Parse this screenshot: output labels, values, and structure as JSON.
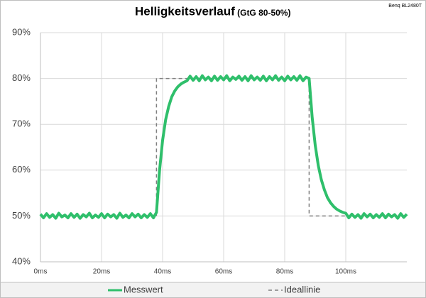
{
  "chart_data": {
    "type": "line",
    "title": "Helligkeitsverlauf",
    "subtitle": "(GtG 80-50%)",
    "annotation": "Benq BL2480T",
    "xlim": [
      0,
      120
    ],
    "xticks": [
      {
        "value": 0,
        "label": "0ms"
      },
      {
        "value": 20,
        "label": "20ms"
      },
      {
        "value": 40,
        "label": "40ms"
      },
      {
        "value": 60,
        "label": "60ms"
      },
      {
        "value": 80,
        "label": "80ms"
      },
      {
        "value": 100,
        "label": "100ms"
      }
    ],
    "ylim": [
      40,
      90
    ],
    "yticks": [
      {
        "value": 40,
        "label": "40%"
      },
      {
        "value": 50,
        "label": "50%"
      },
      {
        "value": 60,
        "label": "60%"
      },
      {
        "value": 70,
        "label": "70%"
      },
      {
        "value": 80,
        "label": "80%"
      },
      {
        "value": 90,
        "label": "90%"
      }
    ],
    "grid": true,
    "legend": "bottom",
    "series": [
      {
        "name": "Messwert",
        "color": "#2fbf6b",
        "dashed": false,
        "x": [
          0,
          1,
          2,
          3,
          4,
          5,
          6,
          7,
          8,
          9,
          10,
          11,
          12,
          13,
          14,
          15,
          16,
          17,
          18,
          19,
          20,
          21,
          22,
          23,
          24,
          25,
          26,
          27,
          28,
          29,
          30,
          31,
          32,
          33,
          34,
          35,
          36,
          37,
          38,
          39,
          40,
          41,
          42,
          43,
          44,
          45,
          46,
          47,
          48,
          49,
          50,
          51,
          52,
          53,
          54,
          55,
          56,
          57,
          58,
          59,
          60,
          61,
          62,
          63,
          64,
          65,
          66,
          67,
          68,
          69,
          70,
          71,
          72,
          73,
          74,
          75,
          76,
          77,
          78,
          79,
          80,
          81,
          82,
          83,
          84,
          85,
          86,
          87,
          88,
          89,
          90,
          91,
          92,
          93,
          94,
          95,
          96,
          97,
          98,
          99,
          100,
          101,
          102,
          103,
          104,
          105,
          106,
          107,
          108,
          109,
          110,
          111,
          112,
          113,
          114,
          115,
          116,
          117,
          118,
          119,
          120
        ],
        "values": [
          50.4,
          49.6,
          50.5,
          49.7,
          50.3,
          49.5,
          50.6,
          49.8,
          50.2,
          49.6,
          50.5,
          49.7,
          50.4,
          49.5,
          50.3,
          49.8,
          50.6,
          49.6,
          50.2,
          49.7,
          50.5,
          49.6,
          50.4,
          49.8,
          50.3,
          49.5,
          50.6,
          49.7,
          50.2,
          49.6,
          50.5,
          49.8,
          50.4,
          49.6,
          50.3,
          49.7,
          50.5,
          49.6,
          50.8,
          59.9,
          66.5,
          71.0,
          73.9,
          76.0,
          77.3,
          78.2,
          78.8,
          79.2,
          79.5,
          80.5,
          79.6,
          80.4,
          79.5,
          80.6,
          79.7,
          80.3,
          79.5,
          80.5,
          79.6,
          80.4,
          79.7,
          80.6,
          79.5,
          80.3,
          79.8,
          80.5,
          79.6,
          80.4,
          79.5,
          80.6,
          79.7,
          80.3,
          79.6,
          80.5,
          79.5,
          80.4,
          79.7,
          80.6,
          79.6,
          80.3,
          79.5,
          80.5,
          79.7,
          80.4,
          79.6,
          80.6,
          79.5,
          80.3,
          80.0,
          71.5,
          65.4,
          61.0,
          57.9,
          55.7,
          54.0,
          52.9,
          52.1,
          51.5,
          51.1,
          50.8,
          50.6,
          49.6,
          50.4,
          49.7,
          50.3,
          49.5,
          50.5,
          49.8,
          50.4,
          49.6,
          50.3,
          49.7,
          50.5,
          49.6,
          50.4,
          49.8,
          50.3,
          49.5,
          50.5,
          49.7,
          50.4
        ]
      },
      {
        "name": "Ideallinie",
        "color": "#808080",
        "dashed": true,
        "x": [
          38,
          38,
          88,
          88,
          118
        ],
        "values": [
          50,
          80,
          80,
          50,
          50
        ]
      }
    ]
  }
}
